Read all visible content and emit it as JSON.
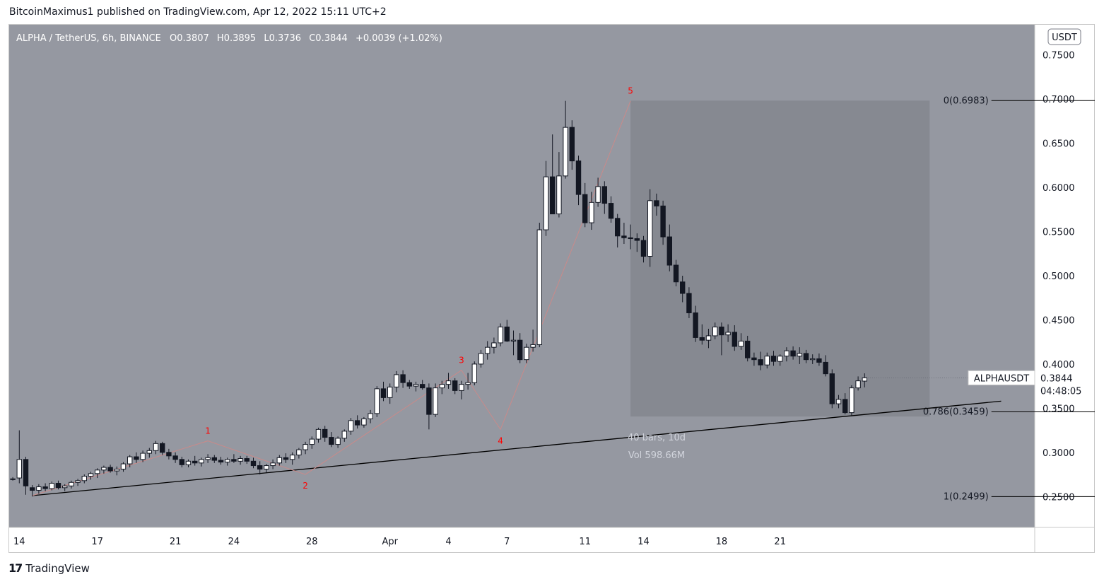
{
  "header": {
    "published_by": "BitcoinMaximus1 published on TradingView.com, Apr 12, 2022 15:11 UTC+2"
  },
  "legend": {
    "symbol": "ALPHA / TetherUS, 6h, BINANCE",
    "o_label": "O",
    "o": "0.3807",
    "h_label": "H",
    "h": "0.3895",
    "l_label": "L",
    "l": "0.3736",
    "c_label": "C",
    "c": "0.3844",
    "change": "+0.0039 (+1.02%)"
  },
  "colors": {
    "background": "#9598a1",
    "price_axis_bg": "#ffffff",
    "candle_up": "#ffffff",
    "candle_down": "#131722",
    "wave_line": "#c98a8a",
    "wave_label": "#ff0000",
    "trendline": "#000000",
    "range_box": "#868991",
    "fib_line": "#000000"
  },
  "currency_badge": "USDT",
  "price_label": {
    "ticker": "ALPHAUSDT",
    "price": "0.3844",
    "countdown": "04:48:05"
  },
  "range_stats": {
    "bars": "40 bars, 10d",
    "vol": "Vol 598.66M"
  },
  "footer": {
    "brand": "TradingView"
  },
  "chart_data": {
    "type": "candlestick",
    "title": "ALPHA / TetherUS, 6h, BINANCE",
    "ylim": [
      0.215,
      0.785
    ],
    "y_ticks": [
      "0.7500",
      "0.7000",
      "0.6500",
      "0.6000",
      "0.5500",
      "0.5000",
      "0.4500",
      "0.4000",
      "0.3500",
      "0.3000",
      "0.2500"
    ],
    "x_ticks": [
      {
        "label": "14",
        "bar": 1.5
      },
      {
        "label": "17",
        "bar": 13.5
      },
      {
        "label": "21",
        "bar": 25.5
      },
      {
        "label": "24",
        "bar": 34.5
      },
      {
        "label": "28",
        "bar": 46.5
      },
      {
        "label": "Apr",
        "bar": 58.5
      },
      {
        "label": "4",
        "bar": 67.5
      },
      {
        "label": "7",
        "bar": 76.5
      },
      {
        "label": "11",
        "bar": 88.5
      },
      {
        "label": "14",
        "bar": 97.5
      },
      {
        "label": "18",
        "bar": 109.5
      },
      {
        "label": "21",
        "bar": 118.5
      }
    ],
    "candles": [
      [
        0.27,
        0.272,
        0.268,
        0.27
      ],
      [
        0.271,
        0.325,
        0.265,
        0.292
      ],
      [
        0.292,
        0.295,
        0.252,
        0.262
      ],
      [
        0.26,
        0.263,
        0.25,
        0.257
      ],
      [
        0.257,
        0.264,
        0.253,
        0.261
      ],
      [
        0.261,
        0.265,
        0.256,
        0.259
      ],
      [
        0.259,
        0.267,
        0.257,
        0.265
      ],
      [
        0.265,
        0.268,
        0.258,
        0.26
      ],
      [
        0.26,
        0.264,
        0.256,
        0.262
      ],
      [
        0.262,
        0.268,
        0.259,
        0.266
      ],
      [
        0.266,
        0.27,
        0.262,
        0.268
      ],
      [
        0.268,
        0.275,
        0.265,
        0.273
      ],
      [
        0.273,
        0.278,
        0.269,
        0.276
      ],
      [
        0.276,
        0.282,
        0.271,
        0.28
      ],
      [
        0.28,
        0.285,
        0.276,
        0.283
      ],
      [
        0.283,
        0.286,
        0.277,
        0.279
      ],
      [
        0.279,
        0.284,
        0.274,
        0.281
      ],
      [
        0.281,
        0.289,
        0.278,
        0.287
      ],
      [
        0.287,
        0.297,
        0.283,
        0.295
      ],
      [
        0.295,
        0.3,
        0.288,
        0.292
      ],
      [
        0.292,
        0.302,
        0.289,
        0.299
      ],
      [
        0.299,
        0.305,
        0.294,
        0.302
      ],
      [
        0.302,
        0.313,
        0.298,
        0.31
      ],
      [
        0.31,
        0.312,
        0.297,
        0.3
      ],
      [
        0.3,
        0.304,
        0.292,
        0.296
      ],
      [
        0.296,
        0.3,
        0.288,
        0.292
      ],
      [
        0.292,
        0.295,
        0.283,
        0.286
      ],
      [
        0.286,
        0.292,
        0.283,
        0.29
      ],
      [
        0.29,
        0.296,
        0.285,
        0.288
      ],
      [
        0.288,
        0.294,
        0.284,
        0.292
      ],
      [
        0.292,
        0.298,
        0.288,
        0.294
      ],
      [
        0.294,
        0.297,
        0.288,
        0.291
      ],
      [
        0.291,
        0.295,
        0.286,
        0.289
      ],
      [
        0.289,
        0.294,
        0.285,
        0.292
      ],
      [
        0.292,
        0.298,
        0.288,
        0.29
      ],
      [
        0.29,
        0.296,
        0.286,
        0.293
      ],
      [
        0.293,
        0.296,
        0.287,
        0.29
      ],
      [
        0.29,
        0.294,
        0.282,
        0.285
      ],
      [
        0.285,
        0.29,
        0.275,
        0.281
      ],
      [
        0.281,
        0.287,
        0.277,
        0.285
      ],
      [
        0.285,
        0.292,
        0.281,
        0.288
      ],
      [
        0.288,
        0.297,
        0.285,
        0.294
      ],
      [
        0.294,
        0.299,
        0.288,
        0.292
      ],
      [
        0.292,
        0.3,
        0.286,
        0.297
      ],
      [
        0.297,
        0.305,
        0.293,
        0.303
      ],
      [
        0.303,
        0.312,
        0.298,
        0.309
      ],
      [
        0.309,
        0.318,
        0.304,
        0.315
      ],
      [
        0.315,
        0.328,
        0.311,
        0.326
      ],
      [
        0.326,
        0.33,
        0.312,
        0.317
      ],
      [
        0.317,
        0.323,
        0.306,
        0.309
      ],
      [
        0.309,
        0.318,
        0.305,
        0.316
      ],
      [
        0.316,
        0.326,
        0.312,
        0.324
      ],
      [
        0.324,
        0.339,
        0.32,
        0.336
      ],
      [
        0.336,
        0.342,
        0.327,
        0.331
      ],
      [
        0.331,
        0.34,
        0.328,
        0.338
      ],
      [
        0.338,
        0.348,
        0.333,
        0.344
      ],
      [
        0.344,
        0.375,
        0.34,
        0.372
      ],
      [
        0.372,
        0.38,
        0.358,
        0.362
      ],
      [
        0.362,
        0.378,
        0.355,
        0.374
      ],
      [
        0.374,
        0.392,
        0.368,
        0.388
      ],
      [
        0.388,
        0.393,
        0.373,
        0.379
      ],
      [
        0.379,
        0.382,
        0.372,
        0.375
      ],
      [
        0.375,
        0.38,
        0.369,
        0.377
      ],
      [
        0.377,
        0.382,
        0.371,
        0.373
      ],
      [
        0.373,
        0.378,
        0.326,
        0.343
      ],
      [
        0.343,
        0.378,
        0.34,
        0.373
      ],
      [
        0.373,
        0.381,
        0.366,
        0.377
      ],
      [
        0.377,
        0.39,
        0.372,
        0.381
      ],
      [
        0.381,
        0.384,
        0.366,
        0.37
      ],
      [
        0.37,
        0.381,
        0.36,
        0.377
      ],
      [
        0.377,
        0.39,
        0.371,
        0.379
      ],
      [
        0.379,
        0.403,
        0.376,
        0.4
      ],
      [
        0.4,
        0.416,
        0.396,
        0.412
      ],
      [
        0.412,
        0.426,
        0.405,
        0.419
      ],
      [
        0.419,
        0.43,
        0.412,
        0.424
      ],
      [
        0.424,
        0.446,
        0.42,
        0.442
      ],
      [
        0.442,
        0.45,
        0.425,
        0.426
      ],
      [
        0.426,
        0.438,
        0.41,
        0.427
      ],
      [
        0.427,
        0.435,
        0.401,
        0.405
      ],
      [
        0.405,
        0.423,
        0.401,
        0.419
      ],
      [
        0.419,
        0.439,
        0.414,
        0.422
      ],
      [
        0.422,
        0.56,
        0.419,
        0.552
      ],
      [
        0.552,
        0.63,
        0.545,
        0.612
      ],
      [
        0.612,
        0.66,
        0.575,
        0.57
      ],
      [
        0.57,
        0.64,
        0.566,
        0.613
      ],
      [
        0.613,
        0.698,
        0.61,
        0.668
      ],
      [
        0.668,
        0.676,
        0.62,
        0.63
      ],
      [
        0.63,
        0.636,
        0.58,
        0.592
      ],
      [
        0.592,
        0.605,
        0.555,
        0.56
      ],
      [
        0.56,
        0.595,
        0.552,
        0.583
      ],
      [
        0.583,
        0.611,
        0.578,
        0.601
      ],
      [
        0.601,
        0.607,
        0.57,
        0.582
      ],
      [
        0.582,
        0.59,
        0.56,
        0.565
      ],
      [
        0.565,
        0.57,
        0.532,
        0.545
      ],
      [
        0.545,
        0.56,
        0.536,
        0.543
      ],
      [
        0.543,
        0.558,
        0.53,
        0.542
      ],
      [
        0.542,
        0.548,
        0.527,
        0.54
      ],
      [
        0.54,
        0.545,
        0.515,
        0.522
      ],
      [
        0.522,
        0.598,
        0.51,
        0.585
      ],
      [
        0.585,
        0.593,
        0.568,
        0.579
      ],
      [
        0.579,
        0.585,
        0.535,
        0.544
      ],
      [
        0.544,
        0.558,
        0.505,
        0.512
      ],
      [
        0.512,
        0.518,
        0.488,
        0.493
      ],
      [
        0.493,
        0.5,
        0.47,
        0.48
      ],
      [
        0.48,
        0.487,
        0.452,
        0.458
      ],
      [
        0.458,
        0.466,
        0.425,
        0.43
      ],
      [
        0.43,
        0.445,
        0.422,
        0.427
      ],
      [
        0.427,
        0.44,
        0.418,
        0.432
      ],
      [
        0.432,
        0.447,
        0.428,
        0.442
      ],
      [
        0.442,
        0.447,
        0.41,
        0.433
      ],
      [
        0.433,
        0.445,
        0.425,
        0.436
      ],
      [
        0.436,
        0.444,
        0.415,
        0.42
      ],
      [
        0.42,
        0.435,
        0.416,
        0.426
      ],
      [
        0.426,
        0.432,
        0.403,
        0.407
      ],
      [
        0.407,
        0.413,
        0.398,
        0.405
      ],
      [
        0.405,
        0.414,
        0.393,
        0.399
      ],
      [
        0.399,
        0.413,
        0.395,
        0.409
      ],
      [
        0.409,
        0.415,
        0.398,
        0.403
      ],
      [
        0.403,
        0.411,
        0.398,
        0.409
      ],
      [
        0.409,
        0.419,
        0.403,
        0.415
      ],
      [
        0.415,
        0.42,
        0.405,
        0.409
      ],
      [
        0.409,
        0.419,
        0.4,
        0.412
      ],
      [
        0.412,
        0.416,
        0.401,
        0.405
      ],
      [
        0.405,
        0.411,
        0.4,
        0.406
      ],
      [
        0.406,
        0.412,
        0.398,
        0.402
      ],
      [
        0.402,
        0.41,
        0.386,
        0.389
      ],
      [
        0.389,
        0.394,
        0.35,
        0.355
      ],
      [
        0.355,
        0.365,
        0.35,
        0.36
      ],
      [
        0.36,
        0.367,
        0.343,
        0.345
      ],
      [
        0.345,
        0.376,
        0.342,
        0.373
      ],
      [
        0.373,
        0.386,
        0.37,
        0.381
      ],
      [
        0.3807,
        0.3895,
        0.3736,
        0.3844
      ]
    ],
    "wave_points": [
      {
        "label": "1",
        "bar": 30.5,
        "price": 0.313
      },
      {
        "label": "2",
        "bar": 45.5,
        "price": 0.275
      },
      {
        "label": "3",
        "bar": 69.5,
        "price": 0.393
      },
      {
        "label": "4",
        "bar": 75.5,
        "price": 0.326
      },
      {
        "label": "5",
        "bar": 95.5,
        "price": 0.698
      }
    ],
    "trendline": {
      "from": {
        "bar": 3.5,
        "price": 0.251
      },
      "to": {
        "bar": 152.5,
        "price": 0.358
      }
    },
    "range_box": {
      "from_bar": 95.5,
      "to_bar": 141.5,
      "top": 0.6983,
      "bottom": 0.3406
    },
    "fib_levels": [
      {
        "label": "0(0.6983)",
        "value": 0.6983
      },
      {
        "label": "0.786(0.3459)",
        "value": 0.3459
      },
      {
        "label": "1(0.2499)",
        "value": 0.2499
      }
    ],
    "fib_bars": [
      151,
      169
    ],
    "current_price": 0.3844
  }
}
